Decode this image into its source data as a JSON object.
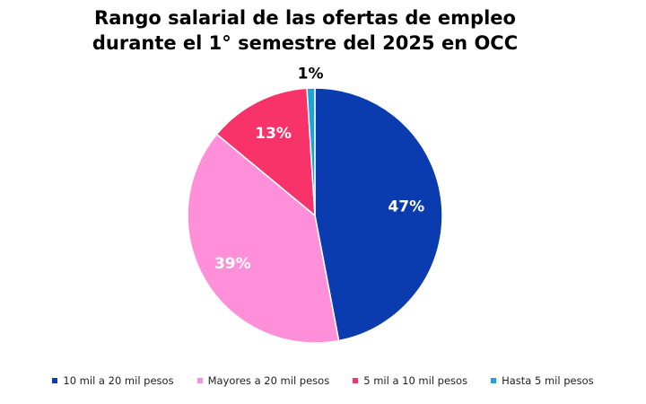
{
  "chart_data": {
    "type": "pie",
    "title": [
      "Rango salarial de las ofertas de empleo",
      "durante el 1° semestre del 2025 en OCC"
    ],
    "slices": [
      {
        "name": "10 mil a 20 mil pesos",
        "value": 47,
        "label": "47%",
        "color": "#0a3cb0"
      },
      {
        "name": "Mayores a 20 mil pesos",
        "value": 39,
        "label": "39%",
        "color": "#ff8fd9"
      },
      {
        "name": "5 mil a 10 mil pesos",
        "value": 13,
        "label": "13%",
        "color": "#f7336a"
      },
      {
        "name": "Hasta 5 mil pesos",
        "value": 1,
        "label": "1%",
        "color": "#1ea3d6"
      }
    ],
    "legend_position": "bottom"
  }
}
